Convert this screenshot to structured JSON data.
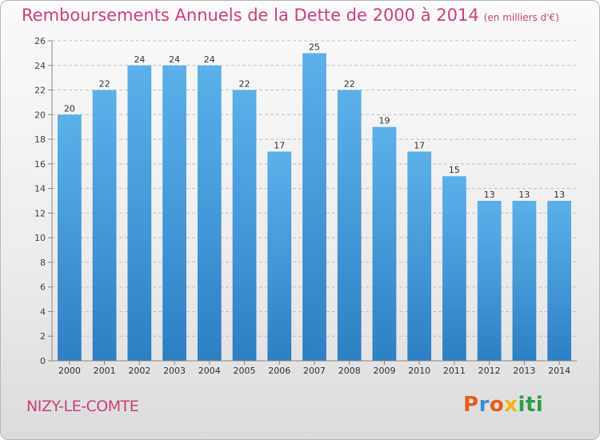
{
  "header": {
    "title": "Remboursements Annuels de la Dette de 2000 à 2014",
    "subtitle": "(en milliers d'€)"
  },
  "footer": {
    "commune": "NIZY-LE-COMTE",
    "logo_text": "Proxiti",
    "logo_colors": [
      "#e85c1c",
      "#3a8fd6",
      "#e85c1c",
      "#f0b414",
      "#2f9e41",
      "#2f9e41",
      "#2f9e41"
    ]
  },
  "chart_data": {
    "type": "bar",
    "categories": [
      "2000",
      "2001",
      "2002",
      "2003",
      "2004",
      "2005",
      "2006",
      "2007",
      "2008",
      "2009",
      "2010",
      "2011",
      "2012",
      "2013",
      "2014"
    ],
    "values": [
      20,
      22,
      24,
      24,
      24,
      22,
      17,
      25,
      22,
      19,
      17,
      15,
      13,
      13,
      13
    ],
    "title": "Remboursements Annuels de la Dette de 2000 à 2014",
    "xlabel": "",
    "ylabel": "",
    "ylim": [
      0,
      26
    ],
    "yticks": [
      0,
      2,
      4,
      6,
      8,
      10,
      12,
      14,
      16,
      18,
      20,
      22,
      24,
      26
    ],
    "grid": true,
    "bar_color": "#4aa3e2",
    "bar_color_dark": "#2a7ec4",
    "grid_color": "#c0c0c0",
    "title_color": "#c8417c"
  }
}
